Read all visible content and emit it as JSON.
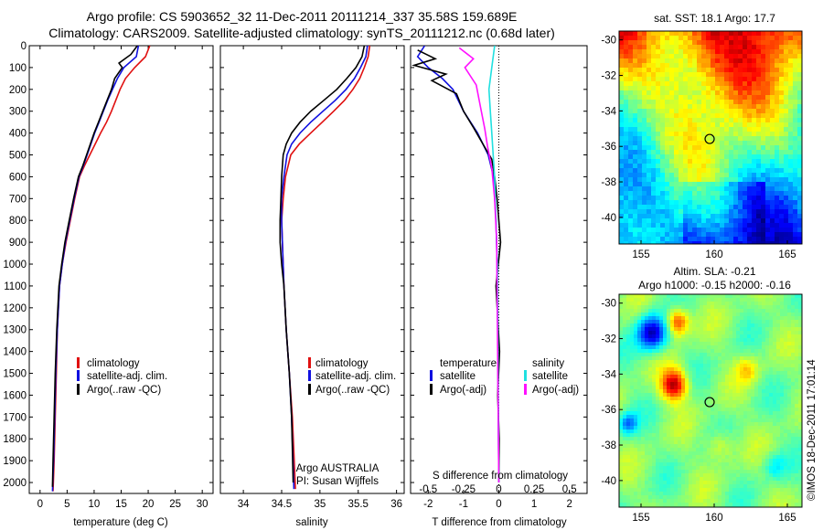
{
  "header": {
    "title_line1": "Argo profile: CS 5903652_32 11-Dec-2011 20111214_337 35.58S 159.689E",
    "title_line2": "Climatology: CARS2009. Satellite-adjusted climatology: synTS_20111212.nc (0.68d later)"
  },
  "colors": {
    "climatology": "#e01010",
    "satellite": "#1010e0",
    "argo": "#000000",
    "salinity_satellite": "#20e0e0",
    "salinity_argo": "#ff10ff"
  },
  "chart_data": [
    {
      "type": "line",
      "name": "temperature-profile",
      "xlabel": "temperature (deg C)",
      "ylabel": "",
      "xlim": [
        -2,
        32
      ],
      "ylim": [
        2050,
        0
      ],
      "xticks": [
        0,
        5,
        10,
        15,
        20,
        25,
        30
      ],
      "yticks": [
        0,
        100,
        200,
        300,
        400,
        500,
        600,
        700,
        800,
        900,
        1000,
        1100,
        1200,
        1300,
        1400,
        1500,
        1600,
        1700,
        1800,
        1900,
        2000
      ],
      "legend": [
        "climatology",
        "satellite-adj. clim.",
        "Argo(..raw -QC)"
      ],
      "legend_position": "lower-right",
      "series": [
        {
          "name": "climatology",
          "x": [
            20.3,
            19.5,
            17.5,
            15.8,
            14.8,
            14.0,
            13.2,
            12.3,
            11.2,
            10.2,
            9.2,
            8.2,
            7.3,
            6.4,
            5.6,
            4.8,
            4.1,
            3.6,
            3.2,
            3.0,
            2.8,
            2.6,
            2.4
          ],
          "y": [
            0,
            50,
            100,
            150,
            200,
            250,
            300,
            350,
            400,
            450,
            500,
            550,
            600,
            700,
            800,
            900,
            1000,
            1100,
            1300,
            1500,
            1700,
            1900,
            2040
          ]
        },
        {
          "name": "satellite-adj. clim.",
          "x": [
            18.2,
            17.8,
            15.5,
            14.3,
            13.4,
            12.5,
            11.7,
            10.9,
            10.1,
            9.4,
            8.7,
            8.0,
            7.2,
            6.3,
            5.5,
            4.7,
            4.1,
            3.6,
            3.2,
            2.9,
            2.7,
            2.5,
            2.3
          ],
          "y": [
            0,
            50,
            100,
            150,
            200,
            250,
            300,
            350,
            400,
            450,
            500,
            550,
            600,
            700,
            800,
            900,
            1000,
            1100,
            1300,
            1500,
            1700,
            1900,
            2040
          ]
        },
        {
          "name": "Argo(..raw -QC)",
          "x": [
            18.0,
            16.8,
            14.6,
            15.2,
            13.8,
            13.2,
            12.4,
            11.6,
            10.8,
            10.0,
            9.3,
            8.6,
            7.9,
            7.1,
            6.2,
            5.4,
            4.6,
            4.0,
            3.5,
            3.1,
            2.8,
            2.6,
            2.4,
            2.3
          ],
          "y": [
            0,
            40,
            80,
            100,
            150,
            200,
            250,
            300,
            350,
            400,
            450,
            500,
            550,
            600,
            700,
            800,
            900,
            1000,
            1100,
            1300,
            1500,
            1700,
            1900,
            2020
          ]
        }
      ]
    },
    {
      "type": "line",
      "name": "salinity-profile",
      "xlabel": "salinity",
      "xlim": [
        33.7,
        36.1
      ],
      "ylim": [
        2050,
        0
      ],
      "xticks": [
        34,
        34.5,
        35,
        35.5,
        36
      ],
      "legend": [
        "climatology",
        "satellite-adj. clim.",
        "Argo(..raw -QC)"
      ],
      "legend_position": "lower-right",
      "annotations": [
        "Argo AUSTRALIA",
        "PI: Susan Wijffels"
      ],
      "series": [
        {
          "name": "climatology",
          "x": [
            35.65,
            35.63,
            35.58,
            35.52,
            35.43,
            35.32,
            35.18,
            35.03,
            34.88,
            34.73,
            34.62,
            34.55,
            34.52,
            34.5,
            34.51,
            34.53,
            34.56,
            34.6,
            34.64,
            34.68
          ],
          "y": [
            0,
            50,
            100,
            150,
            200,
            250,
            300,
            350,
            400,
            450,
            500,
            600,
            700,
            800,
            900,
            1100,
            1300,
            1500,
            1700,
            2030
          ]
        },
        {
          "name": "satellite-adj. clim.",
          "x": [
            35.62,
            35.6,
            35.53,
            35.45,
            35.34,
            35.2,
            35.04,
            34.88,
            34.74,
            34.63,
            34.57,
            34.53,
            34.5,
            34.5,
            34.51,
            34.53,
            34.56,
            34.6,
            34.63,
            34.66
          ],
          "y": [
            0,
            50,
            100,
            150,
            200,
            250,
            300,
            350,
            400,
            450,
            500,
            600,
            700,
            800,
            900,
            1100,
            1300,
            1500,
            1700,
            2030
          ]
        },
        {
          "name": "Argo(..raw -QC)",
          "x": [
            35.58,
            35.55,
            35.47,
            35.35,
            35.22,
            35.05,
            34.88,
            34.74,
            34.63,
            34.56,
            34.52,
            34.5,
            34.49,
            34.48,
            34.48,
            34.5,
            34.53,
            34.56,
            34.6,
            34.63,
            34.65
          ],
          "y": [
            0,
            50,
            100,
            150,
            200,
            250,
            300,
            350,
            400,
            450,
            500,
            600,
            700,
            800,
            900,
            1000,
            1100,
            1300,
            1500,
            1700,
            2000
          ]
        }
      ]
    },
    {
      "type": "line",
      "name": "difference-from-climatology",
      "xlabel": "T difference from climatology",
      "top_axis_label": "S difference from climatology",
      "xlim": [
        -2.5,
        2.5
      ],
      "ylim": [
        2050,
        0
      ],
      "xticks": [
        -2,
        -1,
        0,
        1,
        2
      ],
      "top_xticks": [
        "-0.5",
        "-0.25",
        "0",
        "0.25",
        "0.5"
      ],
      "legend_temperature_title": "temperature",
      "legend_salinity_title": "salinity",
      "legend": [
        "satellite",
        "Argo(-adj)",
        "satellite",
        "Argo(-adj)"
      ],
      "legend_position": "lower-right",
      "series": [
        {
          "name": "satellite",
          "group": "temperature",
          "x": [
            -2.1,
            -2.3,
            -2.0,
            -1.6,
            -1.3,
            -1.0,
            -0.6,
            -0.3,
            -0.15,
            -0.08,
            -0.05,
            -0.03,
            -0.02,
            0.0
          ],
          "y": [
            0,
            50,
            100,
            150,
            200,
            300,
            400,
            500,
            600,
            800,
            1000,
            1300,
            1600,
            2000
          ]
        },
        {
          "name": "Argo(-adj)",
          "group": "temperature",
          "x": [
            -2.3,
            -1.8,
            -2.4,
            -1.5,
            -1.9,
            -1.2,
            -1.0,
            -0.7,
            -0.45,
            -0.2,
            -0.12,
            -0.05,
            0.05,
            -0.08,
            0.02,
            -0.03,
            0.01,
            0.0
          ],
          "y": [
            20,
            60,
            90,
            130,
            160,
            220,
            300,
            380,
            450,
            520,
            600,
            700,
            900,
            1100,
            1400,
            1600,
            1800,
            2000
          ]
        },
        {
          "name": "satellite",
          "group": "salinity",
          "x": [
            -0.03,
            -0.05,
            -0.07,
            -0.06,
            -0.05,
            -0.04,
            -0.03,
            -0.02,
            -0.01,
            -0.005,
            0.0
          ],
          "y": [
            0,
            100,
            200,
            300,
            400,
            500,
            600,
            800,
            1000,
            1500,
            2000
          ]
        },
        {
          "name": "Argo(-adj)",
          "group": "salinity",
          "x": [
            -0.28,
            -0.18,
            -0.24,
            -0.16,
            -0.13,
            -0.1,
            -0.08,
            -0.05,
            -0.03,
            -0.015,
            -0.01,
            0.0
          ],
          "y": [
            10,
            60,
            100,
            180,
            280,
            380,
            460,
            560,
            700,
            900,
            1300,
            2000
          ]
        }
      ]
    },
    {
      "type": "heatmap",
      "name": "sst-map",
      "title": "sat. SST: 18.1  Argo: 17.7",
      "xlim": [
        153.5,
        166
      ],
      "ylim": [
        -41.5,
        -29.5
      ],
      "xticks": [
        155,
        160,
        165
      ],
      "yticks": [
        -30,
        -32,
        -34,
        -36,
        -38,
        -40
      ],
      "marker": {
        "lon": 159.689,
        "lat": -35.58
      }
    },
    {
      "type": "heatmap",
      "name": "sla-map",
      "title_line1": "Altim. SLA: -0.21",
      "title_line2": "Argo h1000: -0.15  h2000: -0.16",
      "xlim": [
        153.5,
        166
      ],
      "ylim": [
        -41.5,
        -29.5
      ],
      "xticks": [
        155,
        160,
        165
      ],
      "yticks": [
        -30,
        -32,
        -34,
        -36,
        -38,
        -40
      ],
      "marker": {
        "lon": 159.689,
        "lat": -35.58
      },
      "side_label": "©IMOS 18-Dec-2011 17:01:14"
    }
  ]
}
